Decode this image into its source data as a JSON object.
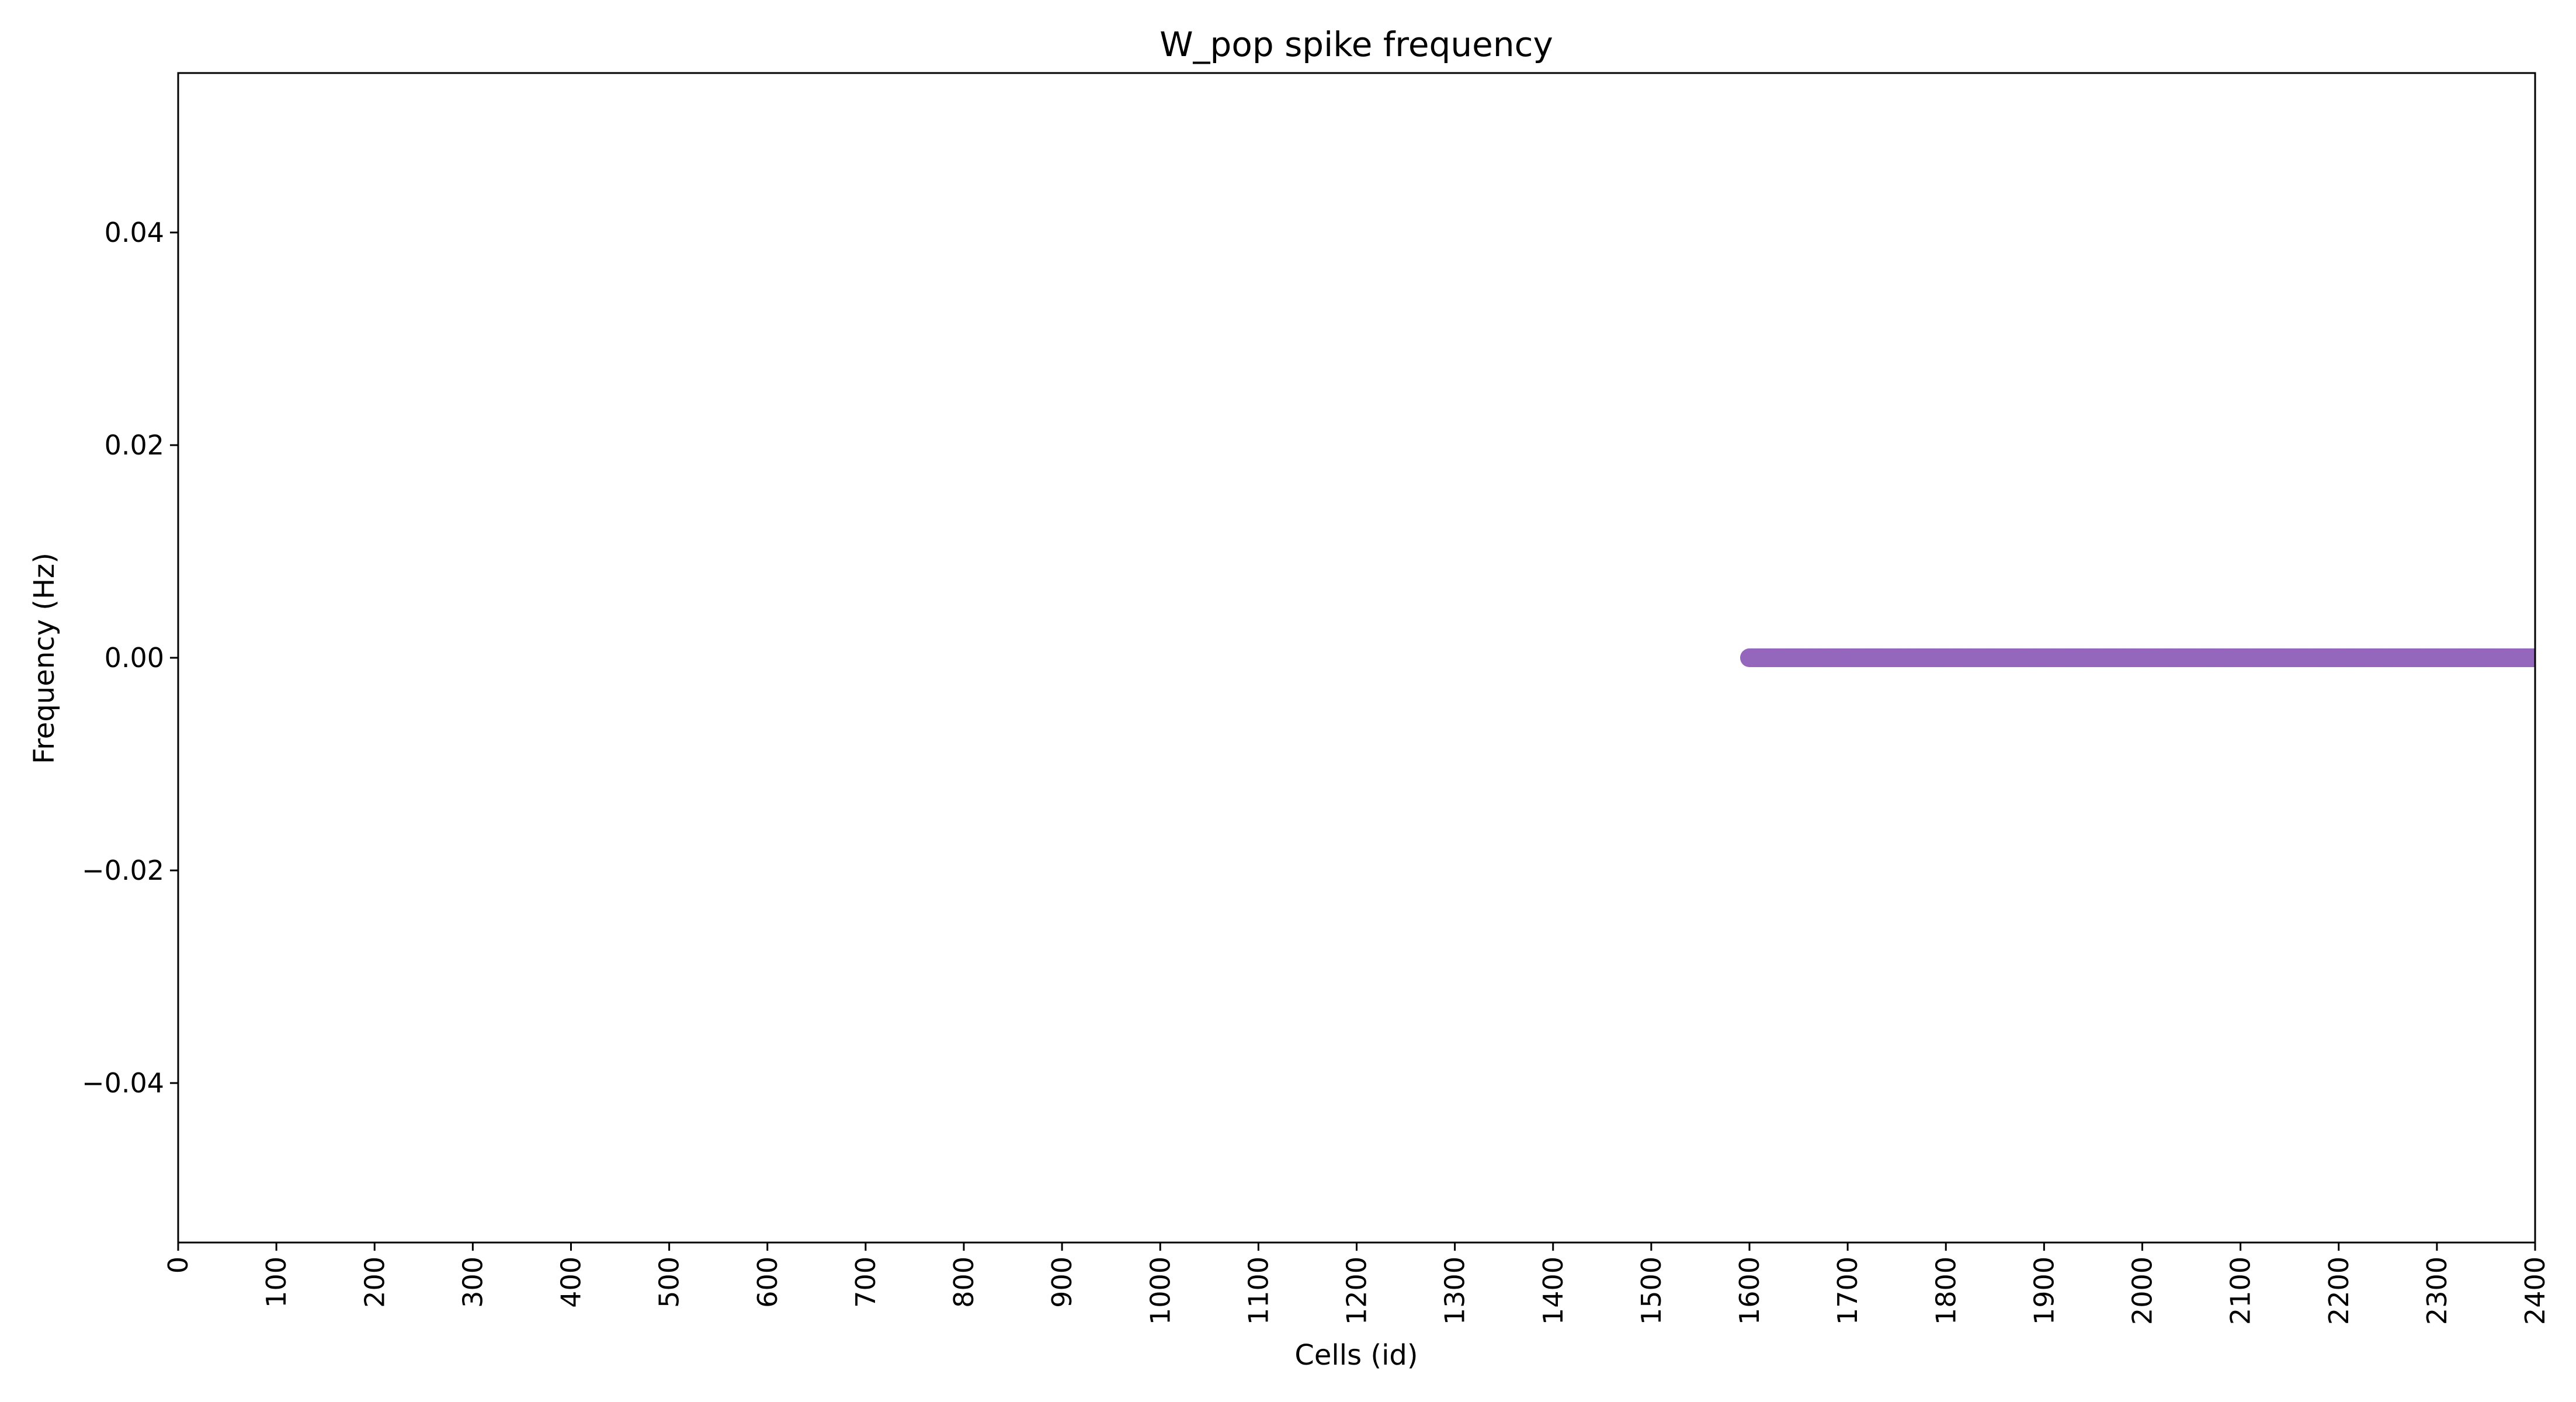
{
  "chart_data": {
    "type": "scatter",
    "title": "W_pop spike frequency",
    "xlabel": "Cells (id)",
    "ylabel": "Frequency (Hz)",
    "xlim": [
      0,
      2400
    ],
    "ylim": [
      -0.055,
      0.055
    ],
    "x_ticks": [
      "0",
      "100",
      "200",
      "300",
      "400",
      "500",
      "600",
      "700",
      "800",
      "900",
      "1000",
      "1100",
      "1200",
      "1300",
      "1400",
      "1500",
      "1600",
      "1700",
      "1800",
      "1900",
      "2000",
      "2100",
      "2200",
      "2300",
      "2400"
    ],
    "y_ticks": [
      {
        "value": -0.04,
        "label": "−0.04"
      },
      {
        "value": -0.02,
        "label": "−0.02"
      },
      {
        "value": 0.0,
        "label": "0.00"
      },
      {
        "value": 0.02,
        "label": "0.02"
      },
      {
        "value": 0.04,
        "label": "0.04"
      }
    ],
    "grid": false,
    "legend": "none",
    "series": [
      {
        "color": "#9467bd",
        "x_start": 1600,
        "x_end": 2399,
        "x_step": 1,
        "y": 0.0
      }
    ]
  }
}
